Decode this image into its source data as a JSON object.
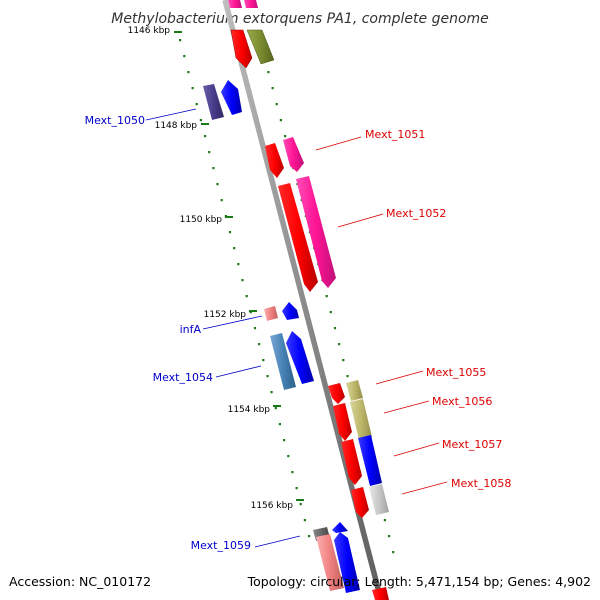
{
  "title": "Methylobacterium extorquens PA1, complete genome",
  "footer": {
    "accession": "Accession: NC_010172",
    "topology": "Topology: circular; Length: 5,471,154 bp; Genes: 4,902"
  },
  "ticks": [
    "1146 kbp",
    "1148 kbp",
    "1150 kbp",
    "1152 kbp",
    "1154 kbp",
    "1156 kbp"
  ],
  "genes": [
    {
      "name": "Mext_1050",
      "strand": "reverse",
      "color": "#0000cc"
    },
    {
      "name": "Mext_1051",
      "strand": "forward",
      "color": "#dd0000"
    },
    {
      "name": "Mext_1052",
      "strand": "forward",
      "color": "#dd0000"
    },
    {
      "name": "infA",
      "strand": "reverse",
      "color": "#0000cc"
    },
    {
      "name": "Mext_1054",
      "strand": "reverse",
      "color": "#0000cc"
    },
    {
      "name": "Mext_1055",
      "strand": "forward",
      "color": "#dd0000"
    },
    {
      "name": "Mext_1056",
      "strand": "forward",
      "color": "#dd0000"
    },
    {
      "name": "Mext_1057",
      "strand": "forward",
      "color": "#dd0000"
    },
    {
      "name": "Mext_1058",
      "strand": "forward",
      "color": "#dd0000"
    },
    {
      "name": "Mext_1059",
      "strand": "reverse",
      "color": "#0000cc"
    }
  ],
  "colors": {
    "backbone": "#8c8c8c",
    "tick_dots": "#1a7a1a",
    "forward_label": "#dd0000",
    "reverse_label": "#0000cc"
  }
}
